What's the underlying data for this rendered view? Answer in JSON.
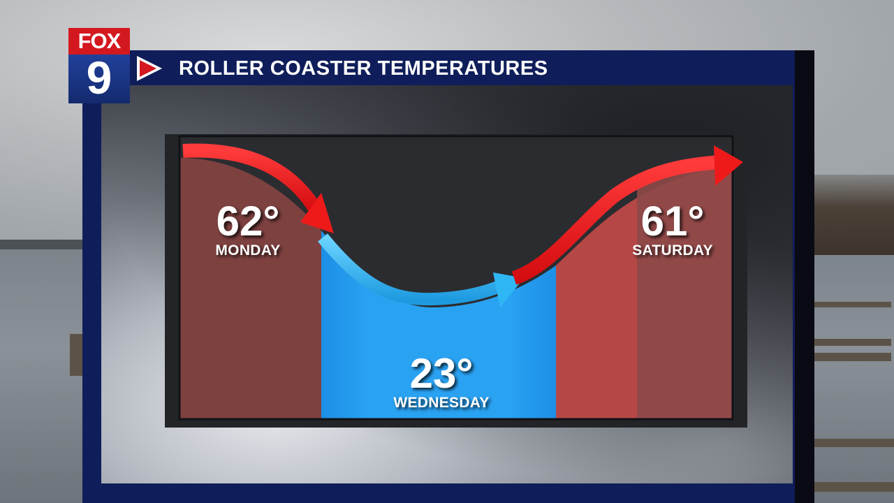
{
  "broadcast": {
    "logo_word": "FOX",
    "logo_number": "9",
    "title": "ROLLER COASTER TEMPERATURES"
  },
  "forecast": {
    "days": [
      {
        "day": "MONDAY",
        "temp": "62°"
      },
      {
        "day": "WEDNESDAY",
        "temp": "23°"
      },
      {
        "day": "SATURDAY",
        "temp": "61°"
      }
    ]
  },
  "colors": {
    "warm": "#9a4a49",
    "warm_bright": "#c74c49",
    "cold": "#1f93ea",
    "cold_light": "#2ea0f0",
    "arrow_red": "#ff2a2a",
    "arrow_blue": "#3ec2ff",
    "board_navy": "#0f1e5a",
    "logo_red": "#d3181f",
    "logo_blue": "#21409a"
  }
}
